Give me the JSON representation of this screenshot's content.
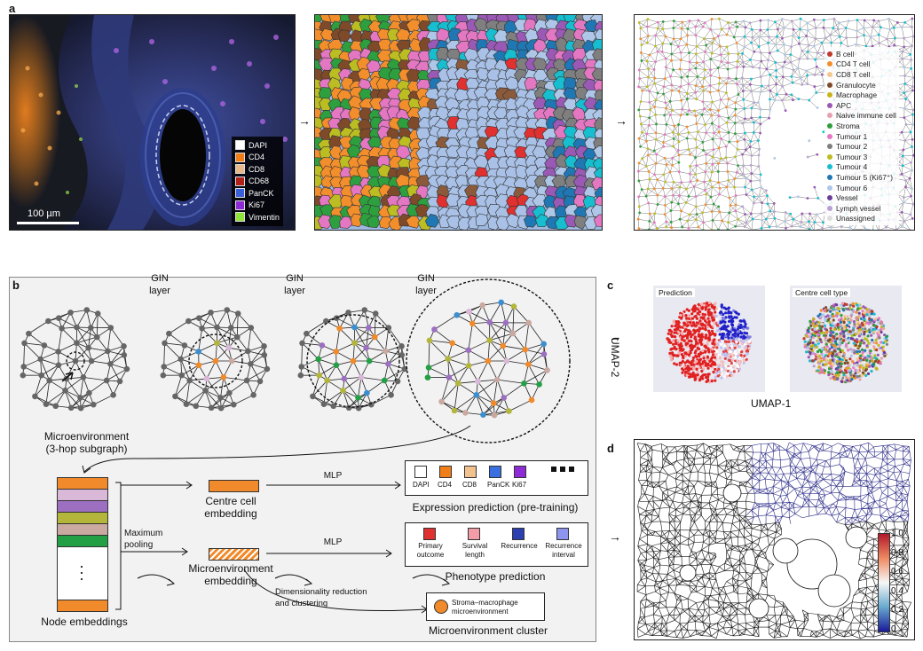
{
  "panels": {
    "a": "a",
    "b": "b",
    "c": "c",
    "d": "d"
  },
  "panel_a": {
    "scale_bar": "100 µm",
    "arrow1": "→",
    "arrow2": "→",
    "markers": [
      {
        "name": "DAPI",
        "color": "#ffffff"
      },
      {
        "name": "CD4",
        "color": "#f07f1a"
      },
      {
        "name": "CD8",
        "color": "#e7b98a"
      },
      {
        "name": "CD68",
        "color": "#b0201a"
      },
      {
        "name": "PanCK",
        "color": "#3a5ed8"
      },
      {
        "name": "Ki67",
        "color": "#8d2bd6"
      },
      {
        "name": "Vimentin",
        "color": "#8fe33a"
      }
    ],
    "cell_types": [
      {
        "name": "B cell",
        "color": "#c0392b"
      },
      {
        "name": "CD4 T cell",
        "color": "#f28e2b"
      },
      {
        "name": "CD8 T cell",
        "color": "#f4c78c"
      },
      {
        "name": "Granulocyte",
        "color": "#7f4a2a"
      },
      {
        "name": "Macrophage",
        "color": "#c9b31b"
      },
      {
        "name": "APC",
        "color": "#9b59b6"
      },
      {
        "name": "Naive immune cell",
        "color": "#e8a0b0"
      },
      {
        "name": "Stroma",
        "color": "#2e9f3e"
      },
      {
        "name": "Tumour 1",
        "color": "#e377c2"
      },
      {
        "name": "Tumour 2",
        "color": "#7f7f7f"
      },
      {
        "name": "Tumour 3",
        "color": "#bcbd22"
      },
      {
        "name": "Tumour 4",
        "color": "#17becf"
      },
      {
        "name": "Tumour 5 (Ki67⁺)",
        "color": "#1f77b4"
      },
      {
        "name": "Tumour 6",
        "color": "#aec7e8"
      },
      {
        "name": "Vessel",
        "color": "#6a3d9a"
      },
      {
        "name": "Lymph vessel",
        "color": "#b8a0d0"
      },
      {
        "name": "Unassigned",
        "color": "#dddddd"
      }
    ]
  },
  "panel_b": {
    "gin_layer_1": "GIN",
    "gin_layer_1b": "layer",
    "gin_layer_2": "GIN",
    "gin_layer_2b": "layer",
    "gin_layer_3": "GIN",
    "gin_layer_3b": "layer",
    "microenv_label_1": "Microenvironment",
    "microenv_label_2": "(3-hop subgraph)",
    "node_embeddings": "Node embeddings",
    "max_pooling_1": "Maximum",
    "max_pooling_2": "pooling",
    "centre_cell_1": "Centre cell",
    "centre_cell_2": "embedding",
    "microenv_emb_1": "Microenvironment",
    "microenv_emb_2": "embedding",
    "mlp1": "MLP",
    "mlp2": "MLP",
    "dimred_1": "Dimensionality reduction",
    "dimred_2": "and clustering",
    "expression_markers": [
      {
        "name": "DAPI",
        "color": "#ffffff"
      },
      {
        "name": "CD4",
        "color": "#f07f1a"
      },
      {
        "name": "CD8",
        "color": "#f2c28e"
      },
      {
        "name": "PanCK",
        "color": "#3a6fe0"
      },
      {
        "name": "Ki67",
        "color": "#8d2bd6"
      }
    ],
    "expression_title": "Expression prediction (pre-training)",
    "phenotypes": [
      {
        "name1": "Primary",
        "name2": "outcome",
        "color": "#e03030"
      },
      {
        "name1": "Survival",
        "name2": "length",
        "color": "#f19ca6"
      },
      {
        "name1": "Recurrence",
        "name2": "",
        "color": "#2b3fb0"
      },
      {
        "name1": "Recurrence",
        "name2": "interval",
        "color": "#8d95ef"
      }
    ],
    "phenotype_title": "Phenotype prediction",
    "cluster_1": "Stroma–macrophage",
    "cluster_2": "microenvironment",
    "cluster_color": "#f08a2a",
    "cluster_title": "Microenvironment cluster"
  },
  "panel_c": {
    "arrow": "→",
    "ylabel": "UMAP-2",
    "xlabel": "UMAP-1",
    "plot1_title": "Prediction",
    "plot2_title": "Centre cell type"
  },
  "panel_d": {
    "arrow": "→",
    "colorbar_ticks": [
      "1.0",
      "0.8",
      "0.6",
      "0.4",
      "0.2",
      "0"
    ]
  }
}
